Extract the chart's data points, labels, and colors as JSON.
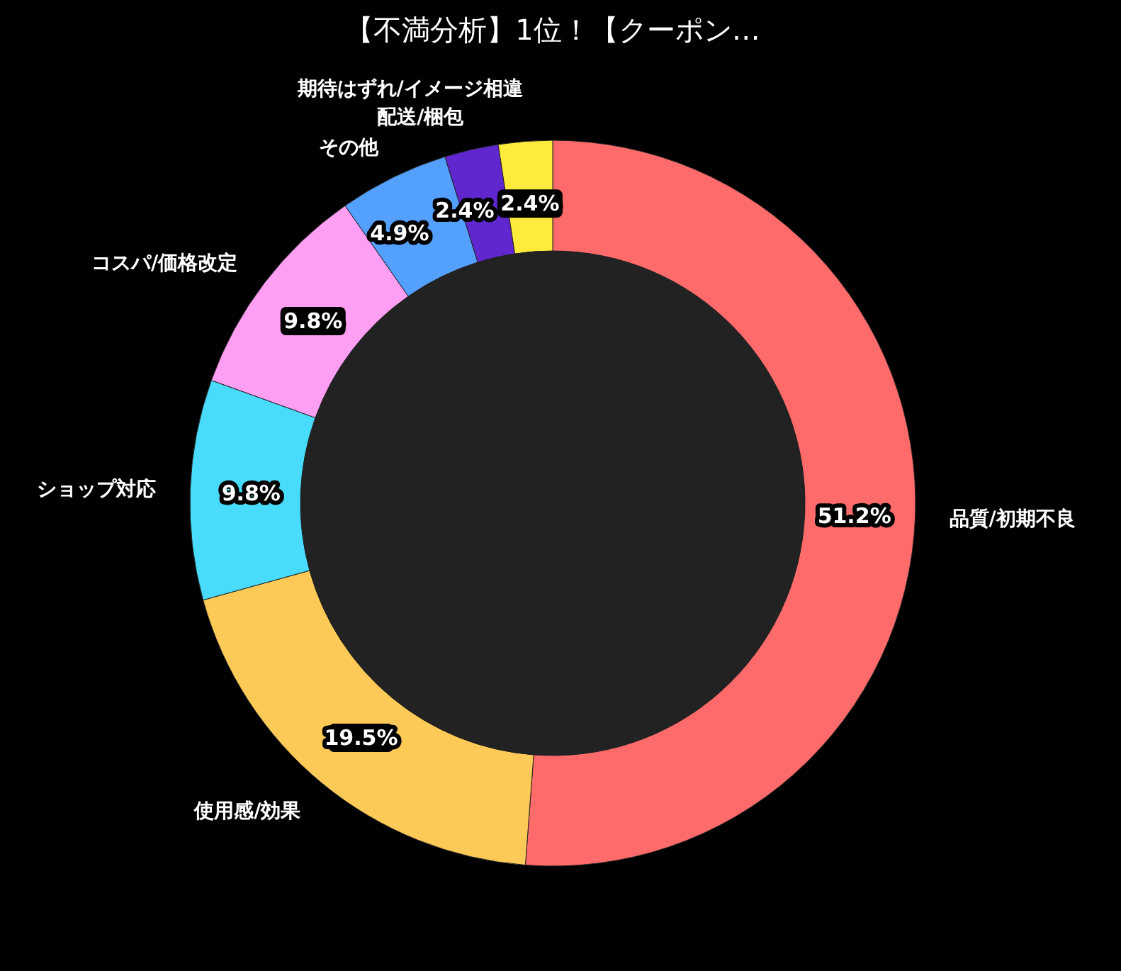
{
  "chart_data": {
    "type": "donut",
    "title": "【不満分析】1位！【クーポン…",
    "categories": [
      "品質/初期不良",
      "使用感/効果",
      "ショップ対応",
      "コスパ/価格改定",
      "その他",
      "配送/梱包",
      "期待はずれ/イメージ相違"
    ],
    "values": [
      51.2,
      19.5,
      9.8,
      9.8,
      4.9,
      2.4,
      2.4
    ],
    "colors": [
      "#ff6b6b",
      "#feca57",
      "#48dbfb",
      "#ff9ff3",
      "#54a0ff",
      "#5f27cd",
      "#ffeb3b"
    ],
    "value_labels": [
      "51.2%",
      "19.5%",
      "9.8%",
      "9.8%",
      "4.9%",
      "2.4%",
      "2.4%"
    ]
  }
}
